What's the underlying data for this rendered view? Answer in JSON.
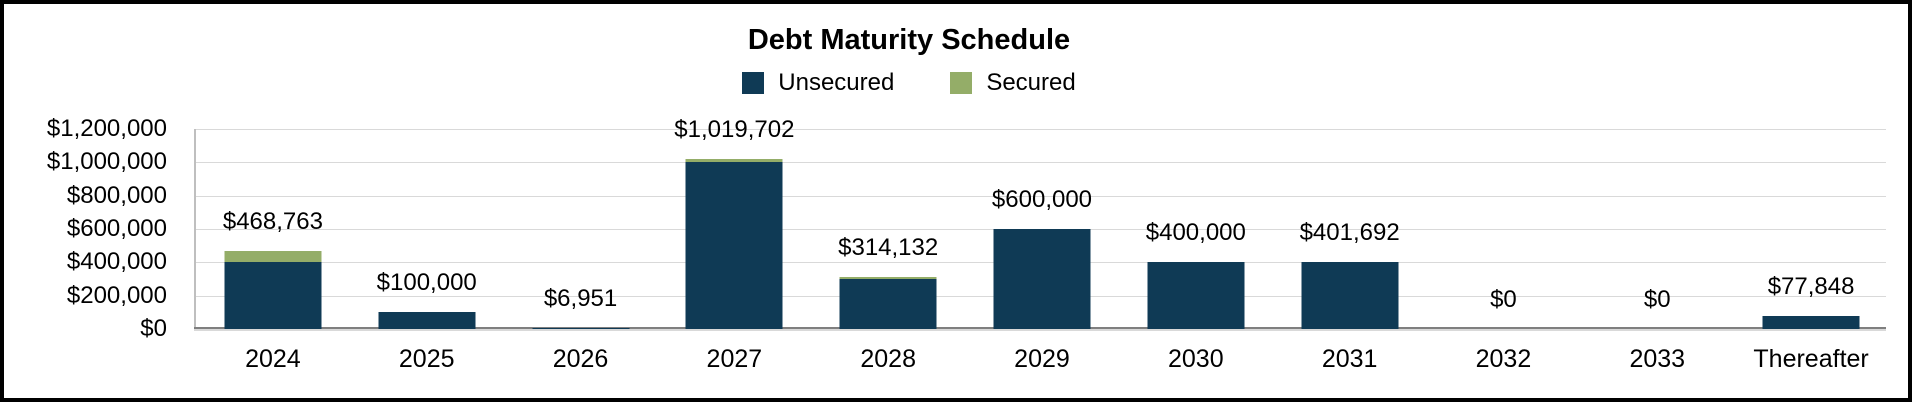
{
  "title": "Debt Maturity Schedule",
  "colors": {
    "unsecured": "#0F3A55",
    "secured": "#94AD68",
    "gridline": "#D9D9D9",
    "axis_line": "#7F7F7F",
    "y_axis_line": "#BFBFBF",
    "text": "#000000",
    "background": "#FFFFFF",
    "border": "#000000"
  },
  "legend": {
    "position": "top",
    "items": [
      {
        "label": "Unsecured",
        "color": "#0F3A55"
      },
      {
        "label": "Secured",
        "color": "#94AD68"
      }
    ]
  },
  "chart_data": {
    "type": "bar",
    "stacked": true,
    "title": "Debt Maturity Schedule",
    "xlabel": "",
    "ylabel": "",
    "grid": true,
    "legend_position": "top",
    "categories": [
      "2024",
      "2025",
      "2026",
      "2027",
      "2028",
      "2029",
      "2030",
      "2031",
      "2032",
      "2033",
      "Thereafter"
    ],
    "series": [
      {
        "name": "Unsecured",
        "color": "#0F3A55",
        "values": [
          400000,
          100000,
          6951,
          1000000,
          300000,
          600000,
          400000,
          401692,
          0,
          0,
          77848
        ]
      },
      {
        "name": "Secured",
        "color": "#94AD68",
        "values": [
          68763,
          0,
          0,
          19702,
          14132,
          0,
          0,
          0,
          0,
          0,
          0
        ]
      }
    ],
    "totals": [
      468763,
      100000,
      6951,
      1019702,
      314132,
      600000,
      400000,
      401692,
      0,
      0,
      77848
    ],
    "total_labels": [
      "$468,763",
      "$100,000",
      "$6,951",
      "$1,019,702",
      "$314,132",
      "$600,000",
      "$400,000",
      "$401,692",
      "$0",
      "$0",
      "$77,848"
    ],
    "ylim": [
      0,
      1200000
    ],
    "ytick_step": 200000,
    "ytick_labels": [
      "$0",
      "$200,000",
      "$400,000",
      "$600,000",
      "$800,000",
      "$1,000,000",
      "$1,200,000"
    ]
  }
}
